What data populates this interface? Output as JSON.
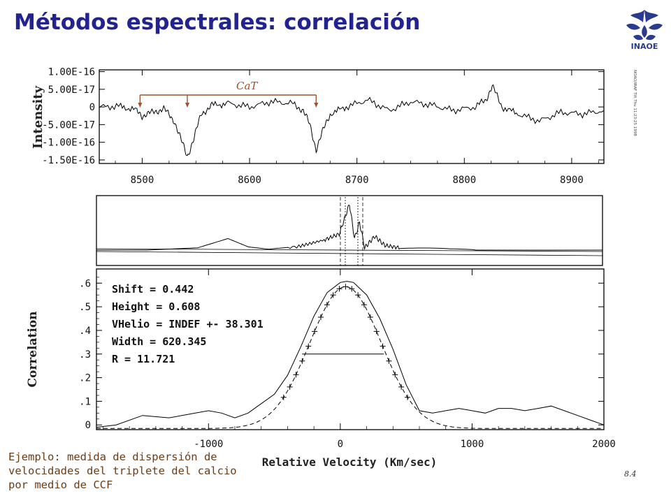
{
  "slide": {
    "title": "Métodos espectrales: correlación",
    "logo_text": "INAOE",
    "caption": "Ejemplo: medida de dispersión de velocidades del triplete del calcio por medio de CCF",
    "page_mark": "8.4",
    "side_note": "NOAO/IRAF Tilt  Thu 11:23:25 1998"
  },
  "chart_data": [
    {
      "type": "line",
      "title": "",
      "xlabel": "",
      "ylabel": "Intensity",
      "xlim": [
        8460,
        8930
      ],
      "ylim": [
        -1.6e-16,
        1.05e-16
      ],
      "y_ticks": [
        "1.00E-16",
        "5.00E-17",
        "0",
        "-5.00E-17",
        "-1.00E-16",
        "-1.50E-16"
      ],
      "x_ticks": [
        "8500",
        "8600",
        "8700",
        "8800",
        "8900"
      ],
      "annotation": "CaT",
      "annotation_lines_at": [
        8498,
        8542,
        8662
      ],
      "series": [
        {
          "x": [
            8460,
            8480,
            8495,
            8500,
            8510,
            8520,
            8530,
            8537,
            8542,
            8548,
            8555,
            8565,
            8580,
            8600,
            8620,
            8640,
            8650,
            8656,
            8662,
            8668,
            8675,
            8690,
            8710,
            8730,
            8750,
            8770,
            8790,
            8810,
            8820,
            8826,
            8835,
            8850,
            8870,
            8890,
            8910,
            8930
          ],
          "y": [
            0.0,
            2e-18,
            -1e-17,
            -2.5e-17,
            -1.5e-17,
            -5e-18,
            -4e-17,
            -1e-16,
            -1.4e-16,
            -9e-17,
            -2e-17,
            5e-18,
            1e-17,
            0.0,
            1.5e-17,
            1e-17,
            -1e-17,
            -5e-17,
            -1.2e-16,
            -7e-17,
            -2e-17,
            0.0,
            2e-17,
            -1e-17,
            1.5e-17,
            5e-18,
            -1e-17,
            0.0,
            2e-17,
            6e-17,
            0.0,
            -2e-17,
            -4e-17,
            -1.5e-17,
            -2e-17,
            -1e-17
          ]
        }
      ]
    },
    {
      "type": "line",
      "title": "",
      "xlabel": "",
      "ylabel": "",
      "series": [
        {
          "x": [
            0,
            0.1,
            0.2,
            0.26,
            0.3,
            0.34,
            0.4,
            0.45,
            0.48,
            0.5,
            0.51,
            0.52,
            0.53,
            0.55,
            0.57,
            0.6,
            0.7,
            0.8,
            0.9,
            1.0
          ],
          "y": [
            0.0,
            0.0,
            0.05,
            0.25,
            0.07,
            0.02,
            0.08,
            0.22,
            0.35,
            1.0,
            0.25,
            0.6,
            0.05,
            0.3,
            0.1,
            0.05,
            0.0,
            0.0,
            0.0,
            0.0
          ]
        }
      ]
    },
    {
      "type": "line",
      "title": "",
      "xlabel": "Relative Velocity (Km/sec)",
      "ylabel": "Correlation",
      "xlim": [
        -1850,
        2000
      ],
      "ylim": [
        -0.02,
        0.66
      ],
      "x_ticks": [
        "-1000",
        "0",
        "1000",
        "2000"
      ],
      "y_ticks": [
        "0",
        ".1",
        ".2",
        ".3",
        ".4",
        ".5",
        ".6"
      ],
      "stats": [
        "Shift = 0.442",
        "Height = 0.608",
        "VHelio = INDEF +- 38.301",
        "Width = 620.345",
        "R = 11.721"
      ],
      "series": [
        {
          "name": "",
          "x": [
            -1850,
            -1700,
            -1500,
            -1300,
            -1100,
            -1000,
            -900,
            -800,
            -700,
            -600,
            -500,
            -400,
            -300,
            -200,
            -100,
            0,
            50,
            100,
            200,
            300,
            400,
            500,
            600,
            700,
            800,
            900,
            1000,
            1100,
            1200,
            1300,
            1400,
            1500,
            1600,
            1700,
            1800,
            1900,
            2000
          ],
          "y": [
            -0.01,
            0.0,
            0.04,
            0.03,
            0.05,
            0.06,
            0.05,
            0.03,
            0.05,
            0.09,
            0.13,
            0.21,
            0.33,
            0.46,
            0.56,
            0.603,
            0.608,
            0.603,
            0.55,
            0.45,
            0.32,
            0.17,
            0.06,
            0.05,
            0.06,
            0.07,
            0.06,
            0.05,
            0.07,
            0.07,
            0.06,
            0.07,
            0.08,
            0.06,
            0.04,
            0.02,
            0.0
          ]
        },
        {
          "name": "",
          "type": "gaussian-fit",
          "center": 40,
          "height": 0.6,
          "sigma": 270,
          "baseline": -0.015
        }
      ],
      "fwhm_line": {
        "x": [
          -290,
          330
        ],
        "y": 0.3
      }
    }
  ]
}
